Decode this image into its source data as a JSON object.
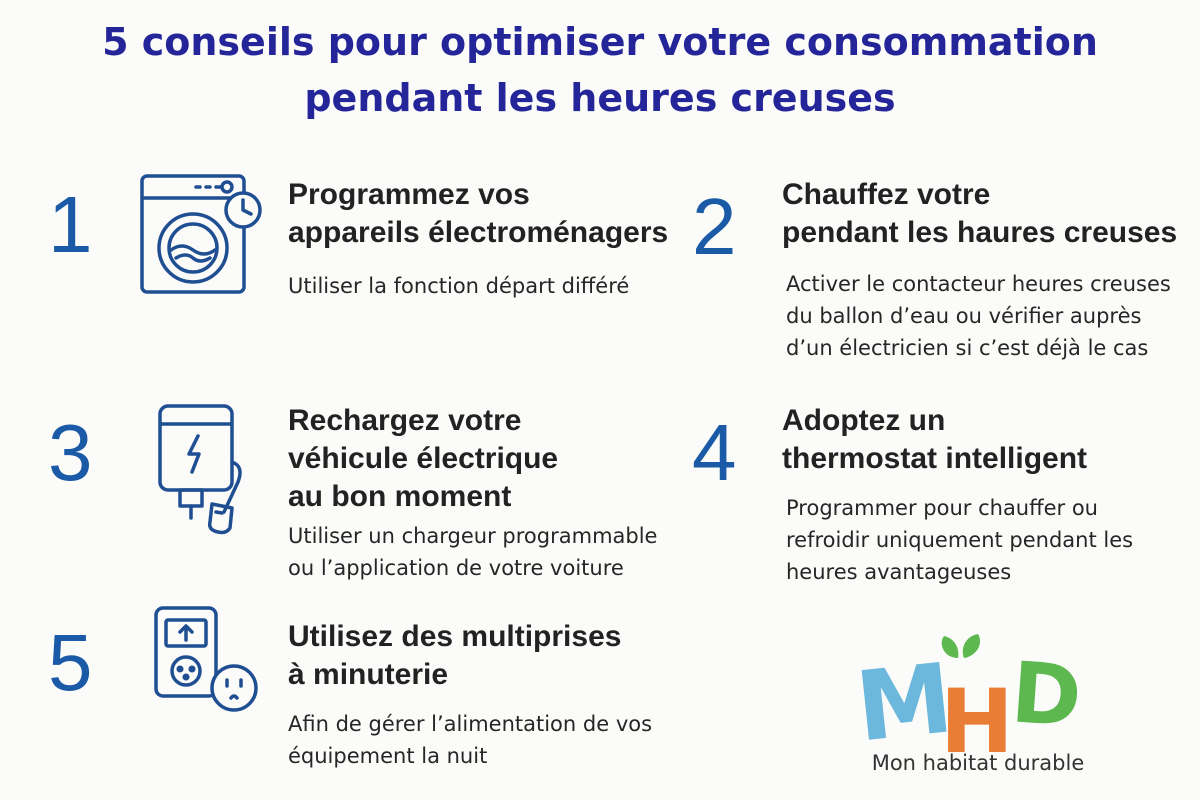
{
  "title": {
    "line1": "5 conseils pour optimiser votre consommation",
    "line2": "pendant les heures creuses"
  },
  "colors": {
    "title": "#25259a",
    "number": "#1a5aa6",
    "icon_stroke": "#1f4f92",
    "logo_m": "#6cb8dc",
    "logo_h": "#e97d35",
    "logo_d": "#5cb84f",
    "logo_leaf": "#5cb84f"
  },
  "tips": [
    {
      "number": "1",
      "icon": "washing-machine-clock-icon",
      "heading": [
        "Programmez vos",
        "appareils électroménagers"
      ],
      "text": [
        "Utiliser la fonction départ différé"
      ]
    },
    {
      "number": "2",
      "icon": "",
      "heading": [
        "Chauffez votre",
        "pendant les haures creuses"
      ],
      "text": [
        "Activer le contacteur heures creuses",
        "du ballon d’eau ou vérifier auprès",
        "d’un électricien si c’est déjà le cas"
      ]
    },
    {
      "number": "3",
      "icon": "ev-charger-plug-icon",
      "heading": [
        "Rechargez votre",
        "véhicule électrique",
        "au bon moment"
      ],
      "text": [
        "Utiliser un chargeur programmable",
        "ou l’application de votre voiture"
      ]
    },
    {
      "number": "4",
      "icon": "",
      "heading": [
        "Adoptez un",
        "thermostat intelligent"
      ],
      "text": [
        "Programmer pour chauffer ou",
        "refroidir uniquement pendant les",
        "heures avantageuses"
      ]
    },
    {
      "number": "5",
      "icon": "timer-power-strip-icon",
      "heading": [
        "Utilisez des multiprises",
        "à minuterie"
      ],
      "text": [
        "Afin de gérer l’alimentation de vos",
        "équipement la nuit"
      ]
    }
  ],
  "logo": {
    "letters": [
      "M",
      "H",
      "D"
    ],
    "caption": "Mon habitat durable"
  }
}
